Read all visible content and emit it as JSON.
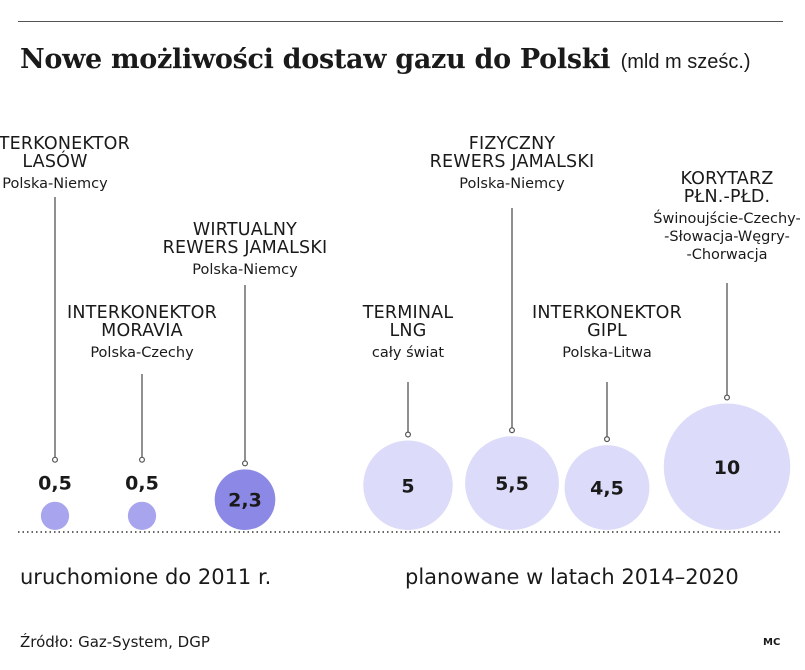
{
  "title": "Nowe możliwości dostaw gazu do Polski",
  "unit": "(mld m sześc.)",
  "source": "Źródło: Gaz-System, DGP",
  "credit": "MC",
  "colors": {
    "existing": "#a8a5ee",
    "existing_dark": "#8c88e6",
    "planned": "#dcdcfa",
    "text": "#1a1a1a",
    "stem": "#555555"
  },
  "chart_data": {
    "type": "bubble",
    "groups": [
      "uruchomione do 2011 r.",
      "planowane w latach 2014–2020"
    ],
    "points": [
      {
        "name": "INTERKONEKTOR\nLASÓW",
        "route": "Polska-Niemcy",
        "value": 0.5,
        "value_label": "0,5",
        "group": 0
      },
      {
        "name": "INTERKONEKTOR\nMORAVIA",
        "route": "Polska-Czechy",
        "value": 0.5,
        "value_label": "0,5",
        "group": 0
      },
      {
        "name": "WIRTUALNY\nREWERS JAMALSKI",
        "route": "Polska-Niemcy",
        "value": 2.3,
        "value_label": "2,3",
        "group": 0
      },
      {
        "name": "TERMINAL\nLNG",
        "route": "cały świat",
        "value": 5,
        "value_label": "5",
        "group": 1
      },
      {
        "name": "FIZYCZNY\nREWERS JAMALSKI",
        "route": "Polska-Niemcy",
        "value": 5.5,
        "value_label": "5,5",
        "group": 1
      },
      {
        "name": "INTERKONEKTOR\nGIPL",
        "route": "Polska-Litwa",
        "value": 4.5,
        "value_label": "4,5",
        "group": 1
      },
      {
        "name": "KORYTARZ\nPŁN.-PŁD.",
        "route": "Świnoujście-Czechy-\n-Słowacja-Węgry-\n-Chorwacja",
        "value": 10,
        "value_label": "10",
        "group": 1
      }
    ]
  }
}
